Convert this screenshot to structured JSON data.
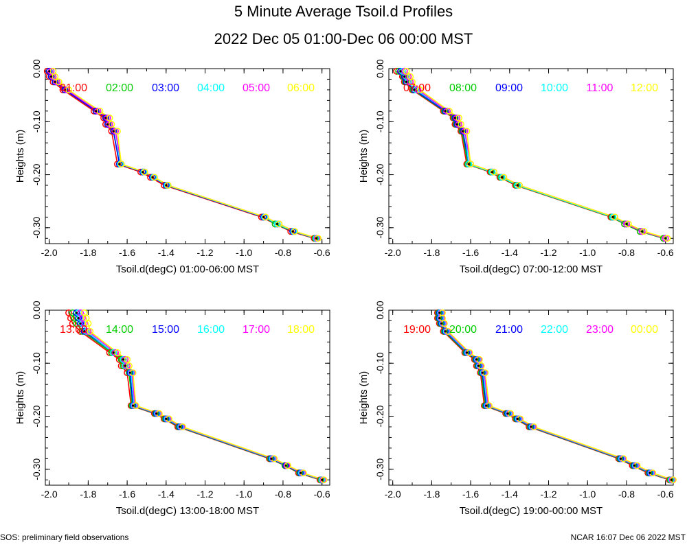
{
  "header": {
    "title": "5 Minute Average Tsoil.d Profiles",
    "subtitle": "2022 Dec 05 01:00-Dec 06 00:00 MST"
  },
  "footer": {
    "left": "SOS: preliminary field observations",
    "right": "NCAR 16:07 Dec 06 2022 MST"
  },
  "colors": [
    "#ff0000",
    "#00cc00",
    "#0000ff",
    "#00ffff",
    "#ff00ff",
    "#ffff00"
  ],
  "chart_data": [
    {
      "type": "line",
      "xlabel": "Tsoil.d(degC) 01:00-06:00 MST",
      "ylabel": "Heights (m)",
      "xlim": [
        -2.02,
        -0.56
      ],
      "ylim": [
        -0.33,
        0.0
      ],
      "xticks": [
        "-2.0",
        "-1.8",
        "-1.6",
        "-1.4",
        "-1.2",
        "-1.0",
        "-0.8",
        "-0.6"
      ],
      "yticks": [
        "0.00",
        "-0.10",
        "-0.20",
        "-0.30"
      ],
      "heights": [
        -0.005,
        -0.015,
        -0.025,
        -0.04,
        -0.08,
        -0.093,
        -0.105,
        -0.118,
        -0.18,
        -0.195,
        -0.205,
        -0.22,
        -0.28,
        -0.293,
        -0.307,
        -0.32
      ],
      "series": [
        {
          "name": "01:00",
          "values": [
            -2.01,
            -2.0,
            -1.98,
            -1.93,
            -1.77,
            -1.72,
            -1.71,
            -1.68,
            -1.65,
            -1.53,
            -1.48,
            -1.41,
            -0.91,
            -0.84,
            -0.76,
            -0.64
          ]
        },
        {
          "name": "02:00",
          "values": [
            -2.0,
            -1.99,
            -1.97,
            -1.92,
            -1.76,
            -1.71,
            -1.7,
            -1.67,
            -1.64,
            -1.52,
            -1.47,
            -1.4,
            -0.9,
            -0.84,
            -0.75,
            -0.635
          ]
        },
        {
          "name": "03:00",
          "values": [
            -2.0,
            -1.99,
            -1.97,
            -1.92,
            -1.76,
            -1.71,
            -1.7,
            -1.67,
            -1.64,
            -1.52,
            -1.47,
            -1.4,
            -0.9,
            -0.83,
            -0.75,
            -0.63
          ]
        },
        {
          "name": "04:00",
          "values": [
            -1.99,
            -1.98,
            -1.96,
            -1.91,
            -1.75,
            -1.7,
            -1.69,
            -1.66,
            -1.635,
            -1.515,
            -1.465,
            -1.395,
            -0.895,
            -0.83,
            -0.745,
            -0.63
          ]
        },
        {
          "name": "05:00",
          "values": [
            -1.99,
            -1.98,
            -1.96,
            -1.91,
            -1.75,
            -1.7,
            -1.69,
            -1.66,
            -1.63,
            -1.51,
            -1.46,
            -1.39,
            -0.89,
            -0.82,
            -0.74,
            -0.625
          ]
        },
        {
          "name": "06:00",
          "values": [
            -1.98,
            -1.97,
            -1.95,
            -1.9,
            -1.74,
            -1.69,
            -1.68,
            -1.65,
            -1.63,
            -1.51,
            -1.46,
            -1.39,
            -0.89,
            -0.82,
            -0.74,
            -0.62
          ]
        }
      ]
    },
    {
      "type": "line",
      "xlabel": "Tsoil.d(degC) 07:00-12:00 MST",
      "ylabel": "Heights (m)",
      "xlim": [
        -2.02,
        -0.56
      ],
      "ylim": [
        -0.33,
        0.0
      ],
      "xticks": [
        "-2.0",
        "-1.8",
        "-1.6",
        "-1.4",
        "-1.2",
        "-1.0",
        "-0.8",
        "-0.6"
      ],
      "yticks": [
        "0.00",
        "-0.10",
        "-0.20",
        "-0.30"
      ],
      "heights": [
        -0.005,
        -0.015,
        -0.025,
        -0.04,
        -0.08,
        -0.093,
        -0.105,
        -0.118,
        -0.18,
        -0.195,
        -0.205,
        -0.22,
        -0.28,
        -0.293,
        -0.307,
        -0.32
      ],
      "series": [
        {
          "name": "07:00",
          "values": [
            -1.98,
            -1.95,
            -1.94,
            -1.9,
            -1.74,
            -1.69,
            -1.68,
            -1.65,
            -1.62,
            -1.5,
            -1.45,
            -1.37,
            -0.88,
            -0.81,
            -0.73,
            -0.61
          ]
        },
        {
          "name": "08:00",
          "values": [
            -1.97,
            -1.945,
            -1.935,
            -1.895,
            -1.735,
            -1.685,
            -1.675,
            -1.645,
            -1.615,
            -1.495,
            -1.445,
            -1.365,
            -0.875,
            -0.81,
            -0.73,
            -0.61
          ]
        },
        {
          "name": "09:00",
          "values": [
            -1.96,
            -1.94,
            -1.93,
            -1.89,
            -1.73,
            -1.68,
            -1.67,
            -1.64,
            -1.61,
            -1.49,
            -1.44,
            -1.36,
            -0.87,
            -0.8,
            -0.72,
            -0.6
          ]
        },
        {
          "name": "10:00",
          "values": [
            -1.95,
            -1.93,
            -1.92,
            -1.88,
            -1.72,
            -1.67,
            -1.66,
            -1.63,
            -1.61,
            -1.49,
            -1.44,
            -1.36,
            -0.87,
            -0.8,
            -0.72,
            -0.6
          ]
        },
        {
          "name": "11:00",
          "values": [
            -1.94,
            -1.92,
            -1.91,
            -1.87,
            -1.72,
            -1.67,
            -1.66,
            -1.63,
            -1.6,
            -1.48,
            -1.43,
            -1.35,
            -0.86,
            -0.8,
            -0.72,
            -0.6
          ]
        },
        {
          "name": "12:00",
          "values": [
            -1.93,
            -1.91,
            -1.9,
            -1.86,
            -1.71,
            -1.66,
            -1.65,
            -1.62,
            -1.6,
            -1.48,
            -1.43,
            -1.35,
            -0.86,
            -0.79,
            -0.71,
            -0.59
          ]
        }
      ]
    },
    {
      "type": "line",
      "xlabel": "Tsoil.d(degC) 13:00-18:00 MST",
      "ylabel": "Heights (m)",
      "xlim": [
        -2.02,
        -0.56
      ],
      "ylim": [
        -0.33,
        0.0
      ],
      "xticks": [
        "-2.0",
        "-1.8",
        "-1.6",
        "-1.4",
        "-1.2",
        "-1.0",
        "-0.8",
        "-0.6"
      ],
      "yticks": [
        "0.00",
        "-0.10",
        "-0.20",
        "-0.30"
      ],
      "heights": [
        -0.005,
        -0.015,
        -0.025,
        -0.04,
        -0.08,
        -0.093,
        -0.105,
        -0.118,
        -0.18,
        -0.195,
        -0.205,
        -0.22,
        -0.28,
        -0.293,
        -0.307,
        -0.32
      ],
      "series": [
        {
          "name": "13:00",
          "values": [
            -1.9,
            -1.89,
            -1.88,
            -1.84,
            -1.69,
            -1.64,
            -1.63,
            -1.6,
            -1.58,
            -1.46,
            -1.41,
            -1.34,
            -0.87,
            -0.79,
            -0.72,
            -0.61
          ]
        },
        {
          "name": "14:00",
          "values": [
            -1.88,
            -1.87,
            -1.86,
            -1.83,
            -1.68,
            -1.63,
            -1.62,
            -1.59,
            -1.575,
            -1.455,
            -1.405,
            -1.335,
            -0.865,
            -0.79,
            -0.715,
            -0.605
          ]
        },
        {
          "name": "15:00",
          "values": [
            -1.86,
            -1.85,
            -1.84,
            -1.82,
            -1.67,
            -1.62,
            -1.61,
            -1.585,
            -1.57,
            -1.45,
            -1.4,
            -1.33,
            -0.86,
            -0.785,
            -0.71,
            -0.6
          ]
        },
        {
          "name": "16:00",
          "values": [
            -1.85,
            -1.84,
            -1.83,
            -1.81,
            -1.67,
            -1.62,
            -1.61,
            -1.58,
            -1.565,
            -1.445,
            -1.395,
            -1.325,
            -0.855,
            -0.78,
            -0.705,
            -0.6
          ]
        },
        {
          "name": "17:00",
          "values": [
            -1.84,
            -1.83,
            -1.82,
            -1.8,
            -1.66,
            -1.61,
            -1.6,
            -1.575,
            -1.56,
            -1.44,
            -1.39,
            -1.32,
            -0.85,
            -0.78,
            -0.7,
            -0.595
          ]
        },
        {
          "name": "18:00",
          "values": [
            -1.82,
            -1.81,
            -1.8,
            -1.79,
            -1.65,
            -1.6,
            -1.59,
            -1.57,
            -1.555,
            -1.435,
            -1.385,
            -1.315,
            -0.845,
            -0.775,
            -0.695,
            -0.59
          ]
        }
      ]
    },
    {
      "type": "line",
      "xlabel": "Tsoil.d(degC) 19:00-00:00 MST",
      "ylabel": "Heights (m)",
      "xlim": [
        -2.02,
        -0.56
      ],
      "ylim": [
        -0.33,
        0.0
      ],
      "xticks": [
        "-2.0",
        "-1.8",
        "-1.6",
        "-1.4",
        "-1.2",
        "-1.0",
        "-0.8",
        "-0.6"
      ],
      "yticks": [
        "0.00",
        "-0.10",
        "-0.20",
        "-0.30"
      ],
      "heights": [
        -0.005,
        -0.015,
        -0.025,
        -0.04,
        -0.08,
        -0.093,
        -0.105,
        -0.118,
        -0.18,
        -0.195,
        -0.205,
        -0.22,
        -0.28,
        -0.293,
        -0.307,
        -0.32
      ],
      "series": [
        {
          "name": "19:00",
          "values": [
            -1.77,
            -1.77,
            -1.76,
            -1.74,
            -1.63,
            -1.58,
            -1.57,
            -1.55,
            -1.53,
            -1.42,
            -1.37,
            -1.3,
            -0.84,
            -0.77,
            -0.69,
            -0.58
          ]
        },
        {
          "name": "20:00",
          "values": [
            -1.765,
            -1.765,
            -1.755,
            -1.735,
            -1.625,
            -1.575,
            -1.565,
            -1.545,
            -1.525,
            -1.415,
            -1.365,
            -1.295,
            -0.835,
            -0.765,
            -0.685,
            -0.575
          ]
        },
        {
          "name": "21:00",
          "values": [
            -1.76,
            -1.76,
            -1.75,
            -1.73,
            -1.62,
            -1.57,
            -1.56,
            -1.54,
            -1.52,
            -1.41,
            -1.36,
            -1.29,
            -0.83,
            -0.76,
            -0.68,
            -0.57
          ]
        },
        {
          "name": "22:00",
          "values": [
            -1.755,
            -1.755,
            -1.745,
            -1.725,
            -1.615,
            -1.565,
            -1.555,
            -1.535,
            -1.515,
            -1.405,
            -1.355,
            -1.285,
            -0.825,
            -0.755,
            -0.675,
            -0.57
          ]
        },
        {
          "name": "23:00",
          "values": [
            -1.75,
            -1.75,
            -1.74,
            -1.72,
            -1.61,
            -1.56,
            -1.55,
            -1.53,
            -1.51,
            -1.4,
            -1.35,
            -1.28,
            -0.82,
            -0.75,
            -0.67,
            -0.565
          ]
        },
        {
          "name": "00:00",
          "values": [
            -1.745,
            -1.745,
            -1.735,
            -1.715,
            -1.605,
            -1.555,
            -1.545,
            -1.525,
            -1.505,
            -1.395,
            -1.345,
            -1.275,
            -0.815,
            -0.745,
            -0.665,
            -0.56
          ]
        }
      ]
    }
  ]
}
